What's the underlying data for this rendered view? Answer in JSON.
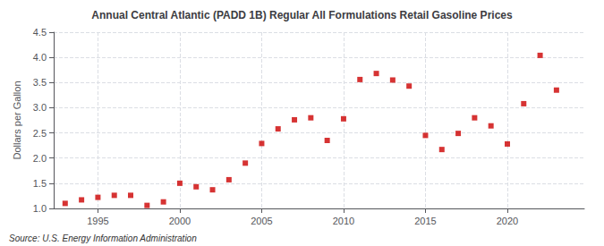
{
  "chart_data": {
    "type": "scatter",
    "title": "Annual Central Atlantic (PADD 1B) Regular All Formulations Retail Gasoline Prices",
    "ylabel": "Dollars per Gallon",
    "annotations": [
      "Source: U.S. Energy Information Administration"
    ],
    "x": [
      1993,
      1994,
      1995,
      1996,
      1997,
      1998,
      1999,
      2000,
      2001,
      2002,
      2003,
      2004,
      2005,
      2006,
      2007,
      2008,
      2009,
      2010,
      2011,
      2012,
      2013,
      2014,
      2015,
      2016,
      2017,
      2018,
      2019,
      2020,
      2021,
      2022,
      2023
    ],
    "values": [
      1.1,
      1.17,
      1.22,
      1.26,
      1.26,
      1.06,
      1.13,
      1.5,
      1.43,
      1.37,
      1.57,
      1.9,
      2.29,
      2.58,
      2.76,
      2.8,
      2.35,
      2.78,
      3.56,
      3.68,
      3.55,
      3.43,
      2.45,
      2.17,
      2.49,
      2.8,
      2.64,
      2.28,
      3.08,
      4.04,
      3.35
    ],
    "color": "#cc0000",
    "marker": "square",
    "xlim": [
      1992.3,
      2024.7
    ],
    "xticks": [
      1995,
      2000,
      2005,
      2010,
      2015,
      2020
    ],
    "ylim": [
      1.0,
      4.5
    ],
    "yticks": [
      {
        "value": 1.0,
        "label": "1.0"
      },
      1.5,
      {
        "value": 2.0,
        "label": "2.0"
      },
      2.5,
      {
        "value": 3.0,
        "label": "3.0"
      },
      3.5,
      {
        "value": 4.0,
        "label": "4.0"
      },
      4.5
    ],
    "grid": true
  }
}
